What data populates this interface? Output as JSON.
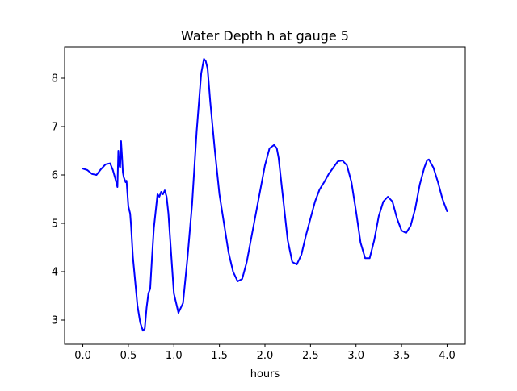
{
  "chart_data": {
    "type": "line",
    "title": "Water Depth h at gauge 5",
    "xlabel": "hours",
    "ylabel": "",
    "xlim": [
      -0.2,
      4.2
    ],
    "ylim": [
      2.5,
      8.65
    ],
    "grid": false,
    "xticks": [
      0.0,
      0.5,
      1.0,
      1.5,
      2.0,
      2.5,
      3.0,
      3.5,
      4.0
    ],
    "xtick_labels": [
      "0.0",
      "0.5",
      "1.0",
      "1.5",
      "2.0",
      "2.5",
      "3.0",
      "3.5",
      "4.0"
    ],
    "yticks": [
      3,
      4,
      5,
      6,
      7,
      8
    ],
    "ytick_labels": [
      "3",
      "4",
      "5",
      "6",
      "7",
      "8"
    ],
    "series": [
      {
        "color": "#0000ff",
        "x": [
          0.0,
          0.05,
          0.1,
          0.15,
          0.2,
          0.25,
          0.3,
          0.33,
          0.36,
          0.38,
          0.39,
          0.4,
          0.41,
          0.42,
          0.43,
          0.44,
          0.45,
          0.46,
          0.47,
          0.48,
          0.5,
          0.52,
          0.53,
          0.55,
          0.57,
          0.6,
          0.63,
          0.66,
          0.68,
          0.7,
          0.72,
          0.74,
          0.76,
          0.78,
          0.8,
          0.82,
          0.84,
          0.86,
          0.88,
          0.9,
          0.92,
          0.94,
          0.96,
          0.98,
          1.0,
          1.05,
          1.1,
          1.15,
          1.2,
          1.25,
          1.3,
          1.33,
          1.35,
          1.37,
          1.4,
          1.45,
          1.5,
          1.55,
          1.6,
          1.65,
          1.7,
          1.75,
          1.8,
          1.85,
          1.9,
          1.95,
          2.0,
          2.05,
          2.1,
          2.13,
          2.15,
          2.2,
          2.25,
          2.3,
          2.35,
          2.4,
          2.45,
          2.5,
          2.55,
          2.6,
          2.65,
          2.7,
          2.75,
          2.8,
          2.85,
          2.9,
          2.95,
          3.0,
          3.05,
          3.1,
          3.15,
          3.2,
          3.25,
          3.3,
          3.35,
          3.4,
          3.45,
          3.5,
          3.55,
          3.6,
          3.65,
          3.7,
          3.75,
          3.78,
          3.8,
          3.85,
          3.9,
          3.95,
          4.0
        ],
        "y": [
          6.13,
          6.1,
          6.02,
          6.0,
          6.12,
          6.22,
          6.24,
          6.1,
          5.9,
          5.75,
          6.5,
          6.2,
          6.15,
          6.7,
          6.4,
          6.05,
          5.95,
          5.9,
          5.85,
          5.88,
          5.35,
          5.2,
          4.95,
          4.3,
          3.9,
          3.3,
          2.95,
          2.78,
          2.82,
          3.25,
          3.55,
          3.65,
          4.3,
          4.9,
          5.25,
          5.6,
          5.55,
          5.65,
          5.6,
          5.68,
          5.55,
          5.2,
          4.65,
          4.1,
          3.55,
          3.15,
          3.35,
          4.3,
          5.4,
          6.9,
          8.1,
          8.4,
          8.35,
          8.2,
          7.5,
          6.5,
          5.6,
          5.0,
          4.4,
          4.0,
          3.8,
          3.85,
          4.2,
          4.7,
          5.2,
          5.7,
          6.2,
          6.55,
          6.62,
          6.55,
          6.35,
          5.5,
          4.65,
          4.2,
          4.15,
          4.35,
          4.75,
          5.1,
          5.45,
          5.7,
          5.85,
          6.02,
          6.15,
          6.28,
          6.3,
          6.2,
          5.85,
          5.25,
          4.6,
          4.28,
          4.28,
          4.65,
          5.15,
          5.45,
          5.55,
          5.45,
          5.1,
          4.85,
          4.8,
          4.95,
          5.3,
          5.8,
          6.15,
          6.3,
          6.32,
          6.15,
          5.85,
          5.5,
          5.25
        ]
      }
    ]
  }
}
